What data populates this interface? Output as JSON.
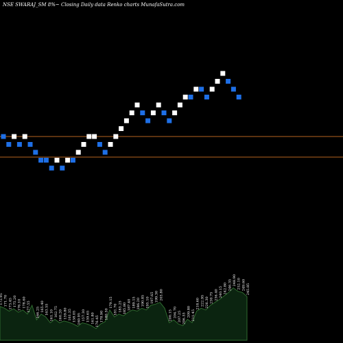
{
  "caption": "NSE SWARAJ_SM 8%~  Closing Daily data  Renko  charts MunafaSutra.com",
  "chart_data": [
    {
      "type": "renko",
      "title": "NSE SWARAJ_SM 8%~  Closing Daily data  Renko  charts MunafaSutra.com",
      "box_colors": {
        "up": "#ffffff",
        "down": "#1e6fe6"
      },
      "reference_lines": {
        "color": "#b8651f",
        "levels": [
          6,
          3
        ]
      },
      "bricks": [
        {
          "level": 2,
          "dir": "down"
        },
        {
          "level": 1,
          "dir": "down"
        },
        {
          "level": 2,
          "dir": "up"
        },
        {
          "level": 1,
          "dir": "down"
        },
        {
          "level": 2,
          "dir": "up"
        },
        {
          "level": 1,
          "dir": "down"
        },
        {
          "level": 0,
          "dir": "down"
        },
        {
          "level": -1,
          "dir": "down"
        },
        {
          "level": -1,
          "dir": "down"
        },
        {
          "level": -2,
          "dir": "down"
        },
        {
          "level": -1,
          "dir": "up"
        },
        {
          "level": -2,
          "dir": "down"
        },
        {
          "level": -1,
          "dir": "up"
        },
        {
          "level": -1,
          "dir": "down"
        },
        {
          "level": 0,
          "dir": "up"
        },
        {
          "level": 1,
          "dir": "up"
        },
        {
          "level": 2,
          "dir": "up"
        },
        {
          "level": 2,
          "dir": "up"
        },
        {
          "level": 1,
          "dir": "down"
        },
        {
          "level": 0,
          "dir": "down"
        },
        {
          "level": 1,
          "dir": "up"
        },
        {
          "level": 2,
          "dir": "up"
        },
        {
          "level": 3,
          "dir": "up"
        },
        {
          "level": 4,
          "dir": "up"
        },
        {
          "level": 5,
          "dir": "up"
        },
        {
          "level": 6,
          "dir": "up"
        },
        {
          "level": 5,
          "dir": "down"
        },
        {
          "level": 4,
          "dir": "down"
        },
        {
          "level": 5,
          "dir": "up"
        },
        {
          "level": 6,
          "dir": "up"
        },
        {
          "level": 5,
          "dir": "down"
        },
        {
          "level": 4,
          "dir": "down"
        },
        {
          "level": 5,
          "dir": "up"
        },
        {
          "level": 6,
          "dir": "up"
        },
        {
          "level": 7,
          "dir": "up"
        },
        {
          "level": 7,
          "dir": "down"
        },
        {
          "level": 8,
          "dir": "up"
        },
        {
          "level": 8,
          "dir": "down"
        },
        {
          "level": 7,
          "dir": "down"
        },
        {
          "level": 8,
          "dir": "up"
        },
        {
          "level": 9,
          "dir": "up"
        },
        {
          "level": 10,
          "dir": "up"
        },
        {
          "level": 9,
          "dir": "down"
        },
        {
          "level": 8,
          "dir": "down"
        },
        {
          "level": 7,
          "dir": "down"
        }
      ]
    },
    {
      "type": "area",
      "series": [
        {
          "values": [
            58,
            55,
            50,
            54,
            48,
            52,
            45,
            60,
            35,
            45,
            40,
            30,
            36,
            30,
            33,
            31,
            28,
            24,
            30,
            28,
            25,
            20,
            28,
            32,
            52,
            40,
            45,
            42,
            48,
            52,
            50,
            55,
            52,
            60,
            62,
            65,
            55,
            30,
            35,
            28,
            25,
            36,
            30,
            50,
            55,
            52,
            60,
            65,
            70,
            76,
            82,
            90,
            84,
            82,
            75
          ],
          "labels": [
            "172.95",
            "171.70",
            "173.45",
            "175.20",
            "176.10",
            "178.60",
            "177.55",
            "",
            "166.25",
            "165.40",
            "163.55",
            "161.10",
            "162.75",
            "160.20",
            "159.80",
            "161.35",
            "158.05",
            "160.95",
            "157.30",
            "159.65",
            "161.80",
            "176.45",
            "178.90",
            "180.50",
            "179.15",
            "181.70",
            "183.25",
            "185.80",
            "187.40",
            "189.15",
            "186.20",
            "190.85",
            "195.10",
            "197.65",
            "199.30",
            "203.80",
            "",
            "200.15",
            "204.70",
            "207.25",
            "206.55",
            "209.80",
            "211.45",
            "218.60",
            "222.95",
            "226.30",
            "230.75",
            "236.40",
            "240.15",
            "242.80",
            "246.35",
            "248.90",
            "252.10",
            "249.60",
            "245.85"
          ]
        }
      ]
    }
  ]
}
